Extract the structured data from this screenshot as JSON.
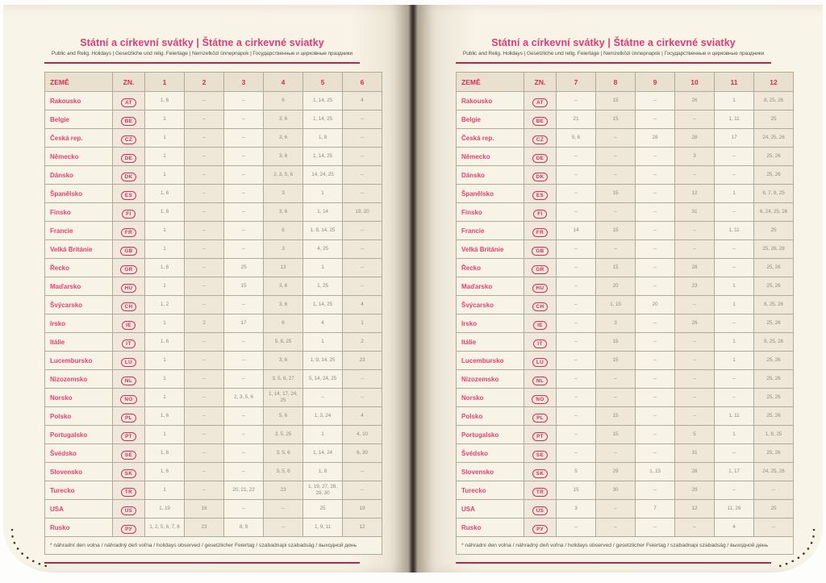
{
  "page_title": "Státní a církevní svátky | Štátne a cirkevné sviatky",
  "page_subtitle": "Public and Relig. Holidays | Gesetzliche und relig. Feiertage | Nemzetközi ünnepnapok | Государственные и церковные праздники",
  "footnote": "* náhradní den volna / náhradný deň voľna / holidays observed / gesetzlicher Feiertag / szabadnapi szabadság / выходной день",
  "colors": {
    "title_pink": "#e23a78",
    "rule_crimson": "#b22a4e",
    "code_red": "#d03055",
    "paper_cream": "#f8f3e6"
  },
  "left_table": {
    "headers": [
      "ZEMĚ",
      "ZN.",
      "1",
      "2",
      "3",
      "4",
      "5",
      "6"
    ],
    "rows": [
      {
        "country": "Rakousko",
        "code": "AT",
        "months": [
          "1, 6",
          "–",
          "–",
          "6",
          "1, 14, 25",
          "4"
        ]
      },
      {
        "country": "Belgie",
        "code": "BE",
        "months": [
          "1",
          "–",
          "–",
          "3, 6",
          "1, 14, 25",
          "–"
        ]
      },
      {
        "country": "Česká rep.",
        "code": "CZ",
        "months": [
          "1",
          "–",
          "–",
          "3, 6",
          "1, 8",
          "–"
        ]
      },
      {
        "country": "Německo",
        "code": "DE",
        "months": [
          "1",
          "–",
          "–",
          "3, 6",
          "1, 14, 25",
          "–"
        ]
      },
      {
        "country": "Dánsko",
        "code": "DK",
        "months": [
          "1",
          "–",
          "–",
          "2, 3, 5, 6",
          "14, 24, 25",
          "–"
        ]
      },
      {
        "country": "Španělsko",
        "code": "ES",
        "months": [
          "1, 6",
          "–",
          "–",
          "3",
          "1",
          "–"
        ]
      },
      {
        "country": "Finsko",
        "code": "FI",
        "months": [
          "1, 6",
          "–",
          "–",
          "3, 6",
          "1, 14",
          "19, 20"
        ]
      },
      {
        "country": "Francie",
        "code": "FR",
        "months": [
          "1",
          "–",
          "–",
          "6",
          "1, 8, 14, 25",
          "–"
        ]
      },
      {
        "country": "Velká Británie",
        "code": "GB",
        "months": [
          "1",
          "–",
          "–",
          "3",
          "4, 25",
          "–"
        ]
      },
      {
        "country": "Řecko",
        "code": "GR",
        "months": [
          "1, 6",
          "–",
          "25",
          "13",
          "1",
          "–"
        ]
      },
      {
        "country": "Maďarsko",
        "code": "HU",
        "months": [
          "1",
          "–",
          "15",
          "3, 6",
          "1, 25",
          "–"
        ]
      },
      {
        "country": "Švýcarsko",
        "code": "CH",
        "months": [
          "1, 2",
          "–",
          "–",
          "3, 6",
          "1, 14, 25",
          "4"
        ]
      },
      {
        "country": "Irsko",
        "code": "IE",
        "months": [
          "1",
          "2",
          "17",
          "6",
          "4",
          "1"
        ]
      },
      {
        "country": "Itálie",
        "code": "IT",
        "months": [
          "1, 6",
          "–",
          "–",
          "5, 6, 25",
          "1",
          "2"
        ]
      },
      {
        "country": "Lucembursko",
        "code": "LU",
        "months": [
          "1",
          "–",
          "–",
          "3, 6",
          "1, 9, 14, 25",
          "23"
        ]
      },
      {
        "country": "Nizozemsko",
        "code": "NL",
        "months": [
          "1",
          "–",
          "–",
          "3, 5, 6, 27",
          "5, 14, 24, 25",
          "–"
        ]
      },
      {
        "country": "Norsko",
        "code": "NO",
        "months": [
          "1",
          "–",
          "2, 3, 5, 6",
          "1, 14, 17, 24, 25",
          "–",
          "–"
        ]
      },
      {
        "country": "Polsko",
        "code": "PL",
        "months": [
          "1, 6",
          "–",
          "–",
          "5, 6",
          "1, 3, 24",
          "4"
        ]
      },
      {
        "country": "Portugalsko",
        "code": "PT",
        "months": [
          "1",
          "–",
          "–",
          "3, 5, 25",
          "1",
          "4, 10"
        ]
      },
      {
        "country": "Švédsko",
        "code": "SE",
        "months": [
          "1, 6",
          "–",
          "–",
          "3, 5, 6",
          "1, 14, 24",
          "6, 20"
        ]
      },
      {
        "country": "Slovensko",
        "code": "SK",
        "months": [
          "1, 6",
          "–",
          "–",
          "3, 5, 6",
          "1, 8",
          "–"
        ]
      },
      {
        "country": "Turecko",
        "code": "TR",
        "months": [
          "1",
          "–",
          "20, 21, 22",
          "23",
          "1, 19, 27, 28, 29, 30",
          "–"
        ]
      },
      {
        "country": "USA",
        "code": "US",
        "months": [
          "1, 19",
          "16",
          "–",
          "–",
          "25",
          "19"
        ]
      },
      {
        "country": "Rusko",
        "code": "РУ",
        "months": [
          "1, 2, 5, 6, 7, 8",
          "23",
          "8, 9",
          "–",
          "1, 9, 11",
          "12"
        ]
      }
    ]
  },
  "right_table": {
    "headers": [
      "ZEMĚ",
      "ZN.",
      "7",
      "8",
      "9",
      "10",
      "11",
      "12"
    ],
    "rows": [
      {
        "country": "Rakousko",
        "code": "AT",
        "months": [
          "–",
          "15",
          "–",
          "26",
          "1",
          "8, 25, 26"
        ]
      },
      {
        "country": "Belgie",
        "code": "BE",
        "months": [
          "21",
          "15",
          "–",
          "–",
          "1, 11",
          "25"
        ]
      },
      {
        "country": "Česká rep.",
        "code": "CZ",
        "months": [
          "5, 6",
          "–",
          "28",
          "28",
          "17",
          "24, 25, 26"
        ]
      },
      {
        "country": "Německo",
        "code": "DE",
        "months": [
          "–",
          "–",
          "–",
          "3",
          "–",
          "25, 26"
        ]
      },
      {
        "country": "Dánsko",
        "code": "DK",
        "months": [
          "–",
          "–",
          "–",
          "–",
          "–",
          "25, 26"
        ]
      },
      {
        "country": "Španělsko",
        "code": "ES",
        "months": [
          "–",
          "15",
          "–",
          "12",
          "1",
          "6, 7, 8, 25"
        ]
      },
      {
        "country": "Finsko",
        "code": "FI",
        "months": [
          "–",
          "–",
          "–",
          "31",
          "–",
          "6, 24, 25, 26"
        ]
      },
      {
        "country": "Francie",
        "code": "FR",
        "months": [
          "14",
          "15",
          "–",
          "–",
          "1, 11",
          "25"
        ]
      },
      {
        "country": "Velká Británie",
        "code": "GB",
        "months": [
          "–",
          "–",
          "–",
          "–",
          "–",
          "25, 26, 28"
        ]
      },
      {
        "country": "Řecko",
        "code": "GR",
        "months": [
          "–",
          "15",
          "–",
          "28",
          "–",
          "25, 26"
        ]
      },
      {
        "country": "Maďarsko",
        "code": "HU",
        "months": [
          "–",
          "20",
          "–",
          "23",
          "1",
          "25, 26"
        ]
      },
      {
        "country": "Švýcarsko",
        "code": "CH",
        "months": [
          "–",
          "1, 15",
          "20",
          "–",
          "1",
          "8, 25, 26"
        ]
      },
      {
        "country": "Irsko",
        "code": "IE",
        "months": [
          "–",
          "3",
          "–",
          "26",
          "–",
          "25, 26"
        ]
      },
      {
        "country": "Itálie",
        "code": "IT",
        "months": [
          "–",
          "15",
          "–",
          "–",
          "1",
          "8, 25, 26"
        ]
      },
      {
        "country": "Lucembursko",
        "code": "LU",
        "months": [
          "–",
          "15",
          "–",
          "–",
          "1",
          "25, 26"
        ]
      },
      {
        "country": "Nizozemsko",
        "code": "NL",
        "months": [
          "–",
          "–",
          "–",
          "–",
          "–",
          "25, 26"
        ]
      },
      {
        "country": "Norsko",
        "code": "NO",
        "months": [
          "–",
          "–",
          "–",
          "–",
          "–",
          "25, 26"
        ]
      },
      {
        "country": "Polsko",
        "code": "PL",
        "months": [
          "–",
          "15",
          "–",
          "–",
          "1, 11",
          "25, 26"
        ]
      },
      {
        "country": "Portugalsko",
        "code": "PT",
        "months": [
          "–",
          "15",
          "–",
          "5",
          "1",
          "1, 8, 25"
        ]
      },
      {
        "country": "Švédsko",
        "code": "SE",
        "months": [
          "–",
          "–",
          "–",
          "31",
          "–",
          "25, 26"
        ]
      },
      {
        "country": "Slovensko",
        "code": "SK",
        "months": [
          "5",
          "29",
          "1, 15",
          "28",
          "1, 17",
          "24, 25, 26"
        ]
      },
      {
        "country": "Turecko",
        "code": "TR",
        "months": [
          "15",
          "30",
          "–",
          "29",
          "–",
          "–"
        ]
      },
      {
        "country": "USA",
        "code": "US",
        "months": [
          "3",
          "–",
          "7",
          "12",
          "11, 26",
          "25"
        ]
      },
      {
        "country": "Rusko",
        "code": "РУ",
        "months": [
          "–",
          "–",
          "–",
          "–",
          "4",
          "–"
        ]
      }
    ]
  }
}
